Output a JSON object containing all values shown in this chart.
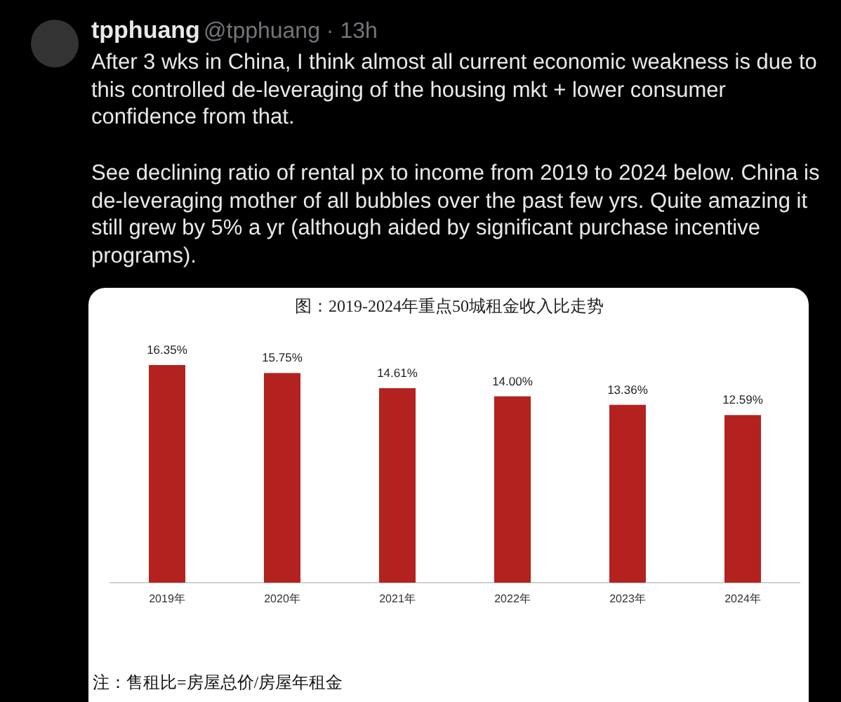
{
  "chart_data": {
    "type": "bar",
    "title": "图：2019-2024年重点50城租金收入比走势",
    "categories": [
      "2019年",
      "2020年",
      "2021年",
      "2022年",
      "2023年",
      "2024年"
    ],
    "values": [
      16.35,
      15.75,
      14.61,
      14.0,
      13.36,
      12.59
    ],
    "value_labels": [
      "16.35%",
      "15.75%",
      "14.61%",
      "14.00%",
      "13.36%",
      "12.59%"
    ],
    "color": "#b3221e",
    "annotations": [
      "tpphuang",
      "@tpphuang · 13h",
      "After 3 wks in China, I think almost all current economic weakness is due to this controlled de-leveraging of the housing mkt + lower consumer confidence from that.",
      "See declining ratio of rental px to income from 2019 to 2024 below. China is de-leveraging mother of all bubbles over the past few yrs. Quite amazing it still grew by 5% a yr (although aided by significant purchase incentive programs).",
      "注：售租比=房屋总价/房屋年租金"
    ]
  }
}
